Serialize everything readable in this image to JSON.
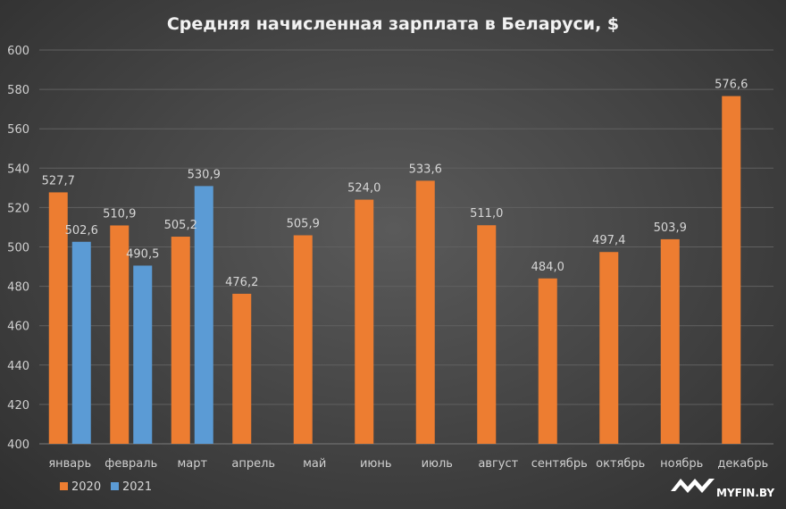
{
  "chart_data": {
    "type": "bar",
    "title": "Средняя начисленная  зарплата в Беларуси, $",
    "categories": [
      "январь",
      "февраль",
      "март",
      "апрель",
      "май",
      "июнь",
      "июль",
      "август",
      "сентябрь",
      "октябрь",
      "ноябрь",
      "декабрь"
    ],
    "series": [
      {
        "name": "2020",
        "color": "#ed7d31",
        "values": [
          527.7,
          510.9,
          505.2,
          476.2,
          505.9,
          524.0,
          533.6,
          511.0,
          484.0,
          497.4,
          503.9,
          576.6
        ],
        "labels": [
          "527,7",
          "510,9",
          "505,2",
          "476,2",
          "505,9",
          "524,0",
          "533,6",
          "511,0",
          "484,0",
          "497,4",
          "503,9",
          "576,6"
        ]
      },
      {
        "name": "2021",
        "color": "#5b9bd5",
        "values": [
          502.6,
          490.5,
          530.9,
          null,
          null,
          null,
          null,
          null,
          null,
          null,
          null,
          null
        ],
        "labels": [
          "502,6",
          "490,5",
          "530,9",
          null,
          null,
          null,
          null,
          null,
          null,
          null,
          null,
          null
        ]
      }
    ],
    "ylim": [
      400,
      600
    ],
    "yticks": [
      400,
      420,
      440,
      460,
      480,
      500,
      520,
      540,
      560,
      580,
      600
    ],
    "grid": true,
    "legend": "bottom-left"
  },
  "logo": {
    "text": "MYFIN.BY"
  }
}
